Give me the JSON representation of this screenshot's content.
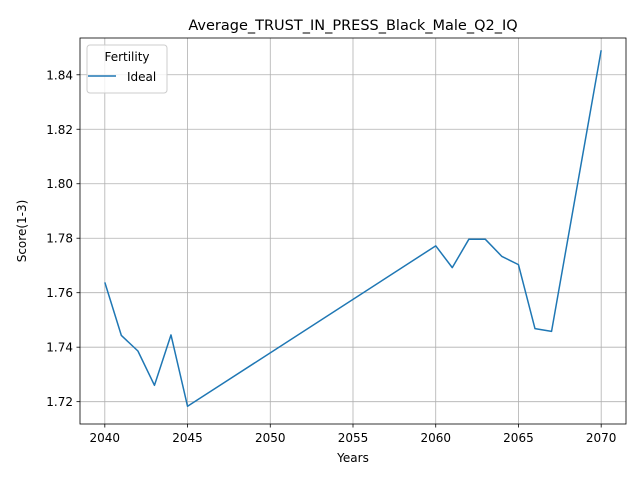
{
  "chart_data": {
    "type": "line",
    "title": "Average_TRUST_IN_PRESS_Black_Male_Q2_IQ",
    "xlabel": "Years",
    "ylabel": "Score(1-3)",
    "xlim": [
      2038.5,
      2071.5
    ],
    "ylim": [
      1.7118,
      1.8535
    ],
    "xticks": [
      2040,
      2045,
      2050,
      2055,
      2060,
      2065,
      2070
    ],
    "yticks": [
      1.72,
      1.74,
      1.76,
      1.78,
      1.8,
      1.82,
      1.84
    ],
    "ytick_labels": [
      "1.72",
      "1.74",
      "1.76",
      "1.78",
      "1.80",
      "1.82",
      "1.84"
    ],
    "grid": true,
    "legend": {
      "title": "Fertility",
      "placement": "top-left"
    },
    "series": [
      {
        "name": "Ideal",
        "color": "#1f77b4",
        "x": [
          2040,
          2041,
          2042,
          2043,
          2044,
          2045,
          2060,
          2061,
          2062,
          2063,
          2064,
          2065,
          2066,
          2067,
          2070
        ],
        "y": [
          1.7638,
          1.7443,
          1.7386,
          1.726,
          1.7445,
          1.7183,
          1.7772,
          1.7692,
          1.7796,
          1.7796,
          1.7733,
          1.7703,
          1.7468,
          1.7458,
          1.849
        ]
      }
    ]
  }
}
